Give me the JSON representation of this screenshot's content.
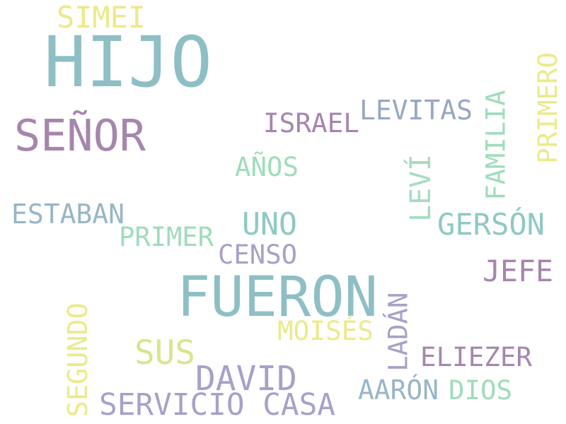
{
  "palette": {
    "yellow": "#ecea8a",
    "teal": "#8ebfc4",
    "mauve": "#a586ad",
    "mint": "#9fdcbb",
    "lavender": "#a9a0c8",
    "slate_blue": "#97a7c4",
    "steel": "#98b6c6",
    "seafoam": "#8ec9c4",
    "sage": "#a6dcc0",
    "lime": "#d8e58e"
  },
  "words": [
    {
      "id": "simei",
      "text": "SIMEI",
      "color": "#ecea8a"
    },
    {
      "id": "hijo",
      "text": "HIJO",
      "color": "#8ebfc4"
    },
    {
      "id": "senor",
      "text": "SEÑOR",
      "color": "#a586ad"
    },
    {
      "id": "israel",
      "text": "ISRAEL",
      "color": "#a586ad"
    },
    {
      "id": "levitas",
      "text": "LEVITAS",
      "color": "#97a7c4"
    },
    {
      "id": "primero",
      "text": "PRIMERO",
      "color": "#ecea8a"
    },
    {
      "id": "familia",
      "text": "FAMILIA",
      "color": "#9fdcbb"
    },
    {
      "id": "levi",
      "text": "LEVÍ",
      "color": "#a6dcc0"
    },
    {
      "id": "anos",
      "text": "AÑOS",
      "color": "#9fdcbb"
    },
    {
      "id": "estaban",
      "text": "ESTABAN",
      "color": "#98b6c6"
    },
    {
      "id": "uno",
      "text": "UNO",
      "color": "#8ec9c4"
    },
    {
      "id": "gerson",
      "text": "GERSÓN",
      "color": "#8ec9c4"
    },
    {
      "id": "primer",
      "text": "PRIMER",
      "color": "#9fdcbb"
    },
    {
      "id": "censo",
      "text": "CENSO",
      "color": "#a9a0c8"
    },
    {
      "id": "jefe",
      "text": "JEFE",
      "color": "#a586ad"
    },
    {
      "id": "fueron",
      "text": "FUERON",
      "color": "#8ebfc4"
    },
    {
      "id": "ladan",
      "text": "LADÁN",
      "color": "#a9a0c8"
    },
    {
      "id": "segundo",
      "text": "SEGUNDO",
      "color": "#ecea8a"
    },
    {
      "id": "moises",
      "text": "MOISÉS",
      "color": "#ecea8a"
    },
    {
      "id": "sus",
      "text": "SUS",
      "color": "#d8e58e"
    },
    {
      "id": "eliezer",
      "text": "ELIEZER",
      "color": "#a586ad"
    },
    {
      "id": "david",
      "text": "DAVID",
      "color": "#a9a0c8"
    },
    {
      "id": "aaron",
      "text": "AARÓN",
      "color": "#98b6c6"
    },
    {
      "id": "dios",
      "text": "DIOS",
      "color": "#9fdcbb"
    },
    {
      "id": "servicio_casa",
      "text": "SERVICIO CASA",
      "color": "#a9a0c8"
    }
  ]
}
